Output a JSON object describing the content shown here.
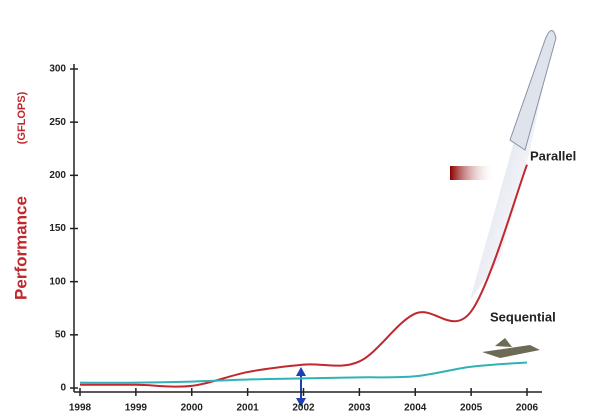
{
  "chart_data": {
    "type": "line",
    "y_label": "Performance",
    "y_label_unit": "(GFLOPS)",
    "x": [
      1998,
      1999,
      2000,
      2001,
      2002,
      2003,
      2004,
      2005,
      2006
    ],
    "xlim": [
      1998,
      2006
    ],
    "xticks": [
      1998,
      1999,
      2000,
      2001,
      2002,
      2003,
      2004,
      2005,
      2006
    ],
    "ylim": [
      0,
      300
    ],
    "yticks": [
      0,
      50,
      100,
      150,
      200,
      250,
      300
    ],
    "series": [
      {
        "name": "Parallel",
        "color": "#c0282d",
        "values": [
          3,
          3,
          2,
          15,
          22,
          25,
          70,
          72,
          210
        ]
      },
      {
        "name": "Sequential",
        "color": "#2fb3b8",
        "values": [
          5,
          5,
          6,
          8,
          9,
          10,
          11,
          20,
          24
        ]
      }
    ]
  }
}
